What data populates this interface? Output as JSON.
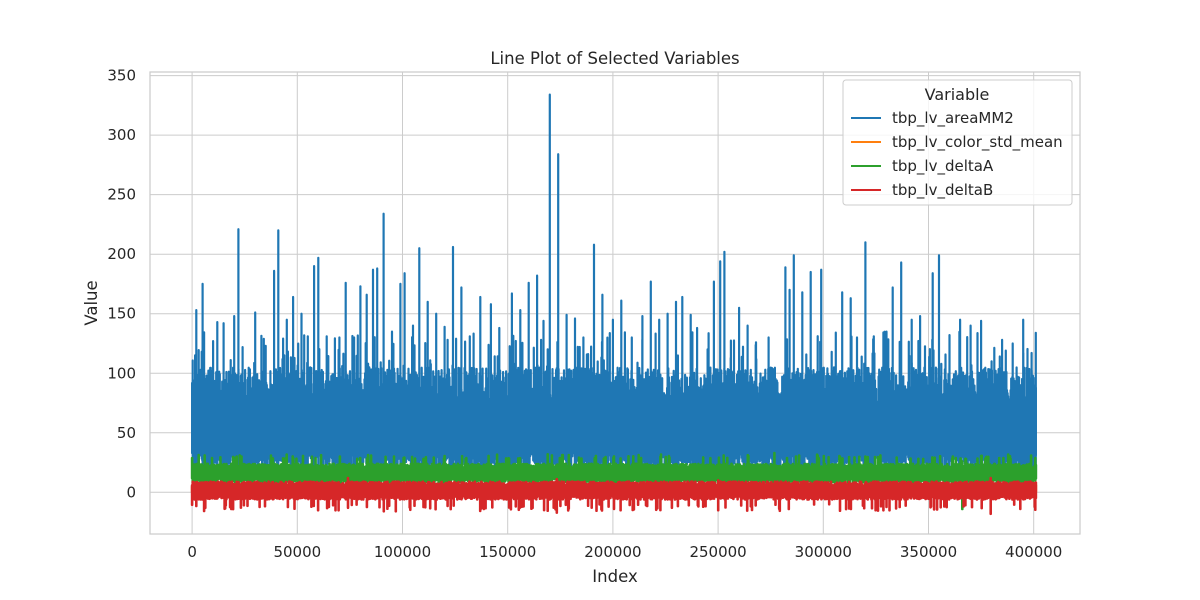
{
  "chart_data": {
    "type": "line",
    "title": "Line Plot of Selected Variables",
    "xlabel": "Index",
    "ylabel": "Value",
    "xlim": [
      -20000,
      422000
    ],
    "ylim": [
      -35,
      353
    ],
    "xticks": [
      0,
      50000,
      100000,
      150000,
      200000,
      250000,
      300000,
      350000,
      400000
    ],
    "yticks": [
      0,
      50,
      100,
      150,
      200,
      250,
      300,
      350
    ],
    "grid": true,
    "legend": {
      "title": "Variable",
      "placement": "top-right"
    },
    "x_range": [
      0,
      401058
    ],
    "series": [
      {
        "name": "tbp_lv_areaMM2",
        "color": "#1f77b4",
        "band": [
          20,
          75
        ],
        "spikes": [
          [
            2000,
            153
          ],
          [
            5000,
            175
          ],
          [
            10000,
            127
          ],
          [
            12000,
            143
          ],
          [
            15000,
            142
          ],
          [
            20000,
            148
          ],
          [
            22000,
            221
          ],
          [
            24000,
            122
          ],
          [
            30000,
            151
          ],
          [
            35000,
            123
          ],
          [
            39000,
            186
          ],
          [
            41000,
            220
          ],
          [
            45000,
            145
          ],
          [
            48000,
            164
          ],
          [
            52000,
            150
          ],
          [
            55000,
            131
          ],
          [
            58000,
            190
          ],
          [
            60000,
            197
          ],
          [
            64000,
            131
          ],
          [
            70000,
            130
          ],
          [
            73000,
            176
          ],
          [
            77000,
            130
          ],
          [
            80000,
            173
          ],
          [
            83000,
            166
          ],
          [
            86000,
            187
          ],
          [
            88000,
            188
          ],
          [
            91000,
            234
          ],
          [
            95000,
            135
          ],
          [
            99000,
            175
          ],
          [
            101000,
            184
          ],
          [
            105000,
            140
          ],
          [
            108000,
            205
          ],
          [
            112000,
            160
          ],
          [
            116000,
            150
          ],
          [
            120000,
            139
          ],
          [
            124000,
            206
          ],
          [
            128000,
            172
          ],
          [
            132000,
            131
          ],
          [
            137000,
            164
          ],
          [
            142000,
            158
          ],
          [
            146000,
            138
          ],
          [
            152000,
            167
          ],
          [
            156000,
            153
          ],
          [
            160000,
            176
          ],
          [
            164000,
            182
          ],
          [
            167000,
            144
          ],
          [
            170000,
            334
          ],
          [
            174000,
            284
          ],
          [
            178000,
            149
          ],
          [
            182000,
            146
          ],
          [
            186000,
            130
          ],
          [
            191000,
            208
          ],
          [
            195000,
            166
          ],
          [
            200000,
            145
          ],
          [
            204000,
            161
          ],
          [
            209000,
            130
          ],
          [
            214000,
            148
          ],
          [
            218000,
            177
          ],
          [
            222000,
            145
          ],
          [
            226000,
            150
          ],
          [
            230000,
            160
          ],
          [
            233000,
            164
          ],
          [
            237000,
            149
          ],
          [
            240000,
            138
          ],
          [
            245000,
            120
          ],
          [
            248000,
            177
          ],
          [
            251000,
            194
          ],
          [
            253000,
            202
          ],
          [
            256000,
            113
          ],
          [
            260000,
            155
          ],
          [
            264000,
            140
          ],
          [
            268000,
            126
          ],
          [
            274000,
            130
          ],
          [
            282000,
            189
          ],
          [
            284000,
            170
          ],
          [
            286000,
            199
          ],
          [
            290000,
            168
          ],
          [
            294000,
            185
          ],
          [
            299000,
            187
          ],
          [
            304000,
            118
          ],
          [
            309000,
            168
          ],
          [
            313000,
            163
          ],
          [
            316000,
            130
          ],
          [
            320000,
            210
          ],
          [
            324000,
            131
          ],
          [
            329000,
            107
          ],
          [
            333000,
            172
          ],
          [
            337000,
            193
          ],
          [
            342000,
            145
          ],
          [
            346000,
            148
          ],
          [
            352000,
            184
          ],
          [
            355000,
            199
          ],
          [
            360000,
            132
          ],
          [
            365000,
            145
          ],
          [
            370000,
            140
          ],
          [
            375000,
            144
          ],
          [
            380000,
            110
          ],
          [
            385000,
            128
          ],
          [
            390000,
            125
          ],
          [
            395000,
            145
          ],
          [
            399000,
            117
          ],
          [
            401000,
            134
          ]
        ]
      },
      {
        "name": "tbp_lv_color_std_mean",
        "color": "#ff7f0e",
        "band": [
          0,
          6
        ]
      },
      {
        "name": "tbp_lv_deltaA",
        "color": "#2ca02c",
        "band": [
          8,
          24
        ],
        "extremes": [
          [
            -2,
            30
          ],
          [
            -2,
            31
          ],
          [
            -1,
            33
          ],
          [
            -14,
            26
          ]
        ]
      },
      {
        "name": "tbp_lv_deltaB",
        "color": "#d62728",
        "band": [
          -6,
          9
        ],
        "extremes": [
          [
            -13,
            12
          ],
          [
            -17,
            11
          ],
          [
            -15,
            10
          ],
          [
            -18,
            12
          ]
        ]
      }
    ]
  }
}
